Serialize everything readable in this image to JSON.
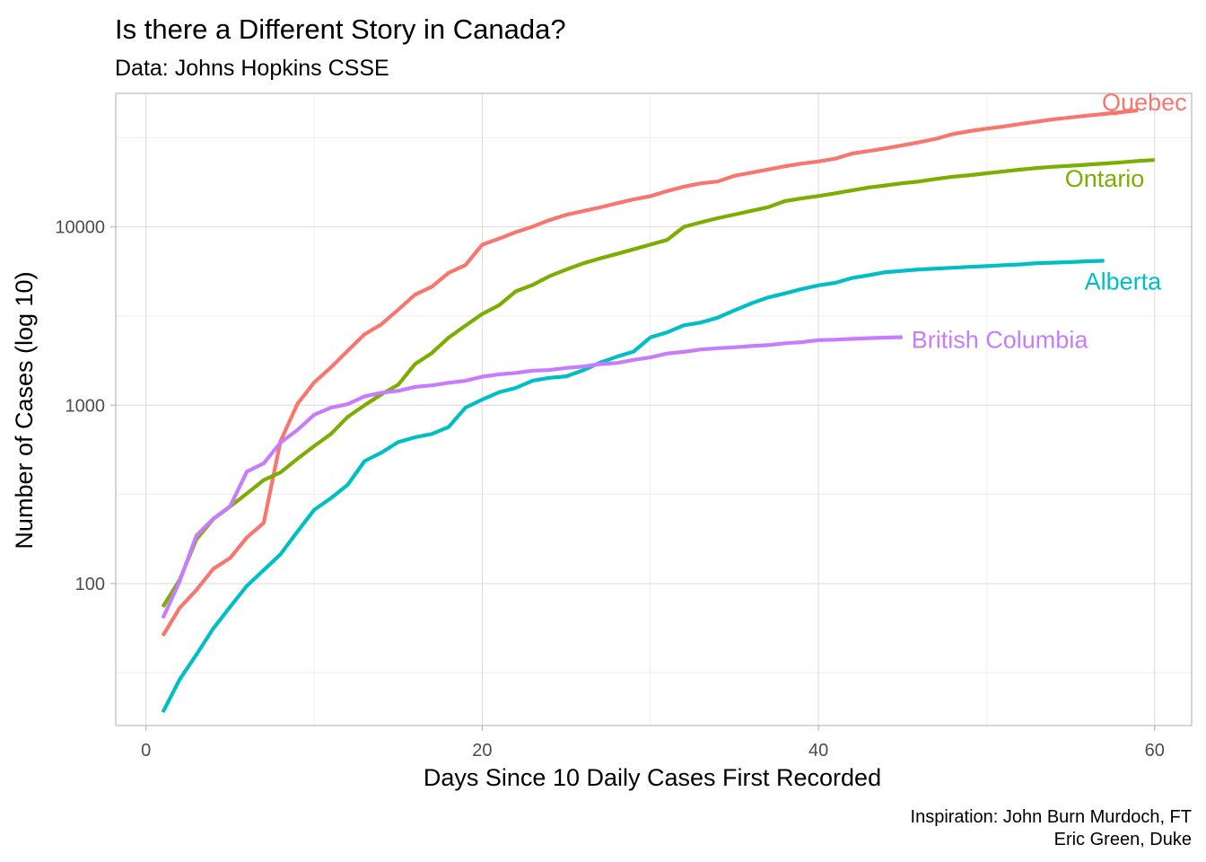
{
  "chart_data": {
    "type": "line",
    "title": "Is there a Different Story in Canada?",
    "subtitle": "Data: Johns Hopkins CSSE",
    "xlabel": "Days Since 10 Daily Cases First Recorded",
    "ylabel": "Number of Cases (log 10)",
    "caption": [
      "Inspiration: John Burn Murdoch, FT",
      "Eric Green, Duke"
    ],
    "y_scale": "log10",
    "xlim": [
      -1.8,
      62.2
    ],
    "ylim": [
      16,
      56000
    ],
    "x_ticks": [
      0,
      20,
      40,
      60
    ],
    "y_ticks": [
      100,
      1000,
      10000
    ],
    "grid": true,
    "legend": "none (direct labels at line ends)",
    "series": [
      {
        "name": "Quebec",
        "color": "#F8766D",
        "x": [
          1,
          2,
          3,
          4,
          5,
          6,
          7,
          8,
          9,
          10,
          11,
          12,
          13,
          14,
          15,
          16,
          17,
          18,
          19,
          20,
          21,
          22,
          23,
          24,
          25,
          26,
          27,
          28,
          29,
          30,
          31,
          32,
          33,
          34,
          35,
          36,
          37,
          38,
          39,
          40,
          41,
          42,
          43,
          44,
          45,
          46,
          47,
          48,
          49,
          50,
          51,
          52,
          53,
          54,
          55,
          56,
          57,
          58,
          59
        ],
        "values": [
          51,
          73,
          92,
          121,
          139,
          181,
          219,
          628,
          1013,
          1342,
          1629,
          2021,
          2498,
          2840,
          3430,
          4162,
          4611,
          5518,
          6101,
          7944,
          8580,
          9340,
          10031,
          10912,
          11677,
          12248,
          12846,
          13557,
          14248,
          14860,
          15857,
          16798,
          17521,
          17950,
          19319,
          20126,
          20965,
          21838,
          22616,
          23267,
          24109,
          25757,
          26594,
          27538,
          28648,
          29793,
          31203,
          33111,
          34396,
          35494,
          36528,
          37700,
          38910,
          40103,
          41040,
          42000,
          42920,
          43900,
          45000
        ]
      },
      {
        "name": "Ontario",
        "color": "#7CAE00",
        "x": [
          1,
          2,
          3,
          4,
          5,
          6,
          7,
          8,
          9,
          10,
          11,
          12,
          13,
          14,
          15,
          16,
          17,
          18,
          19,
          20,
          21,
          22,
          23,
          24,
          25,
          26,
          27,
          28,
          29,
          30,
          31,
          32,
          33,
          34,
          35,
          36,
          37,
          38,
          39,
          40,
          41,
          42,
          43,
          44,
          45,
          46,
          47,
          48,
          49,
          50,
          51,
          52,
          53,
          54,
          55,
          56,
          57,
          58,
          59,
          60
        ],
        "values": [
          74,
          105,
          177,
          230,
          270,
          320,
          380,
          420,
          500,
          590,
          690,
          860,
          1000,
          1150,
          1300,
          1700,
          1960,
          2390,
          2790,
          3250,
          3630,
          4350,
          4720,
          5290,
          5760,
          6240,
          6650,
          7050,
          7480,
          7950,
          8450,
          10000,
          10600,
          11180,
          11710,
          12300,
          12880,
          13940,
          14450,
          14880,
          15420,
          16020,
          16610,
          17070,
          17550,
          17970,
          18550,
          19110,
          19490,
          19950,
          20450,
          20920,
          21360,
          21720,
          22000,
          22320,
          22650,
          23000,
          23400,
          23700
        ]
      },
      {
        "name": "Alberta",
        "color": "#00BFC4",
        "x": [
          1,
          2,
          3,
          4,
          5,
          6,
          7,
          8,
          9,
          10,
          11,
          12,
          13,
          14,
          15,
          16,
          17,
          18,
          19,
          20,
          21,
          22,
          23,
          24,
          25,
          26,
          27,
          28,
          29,
          30,
          31,
          32,
          33,
          34,
          35,
          36,
          37,
          38,
          39,
          40,
          41,
          42,
          43,
          44,
          45,
          46,
          47,
          48,
          49,
          50,
          51,
          52,
          53,
          54,
          55,
          56,
          57
        ],
        "values": [
          19,
          29,
          40,
          56,
          74,
          97,
          119,
          146,
          195,
          259,
          301,
          358,
          486,
          542,
          621,
          661,
          690,
          754,
          969,
          1075,
          1181,
          1250,
          1373,
          1423,
          1451,
          1569,
          1732,
          1870,
          1996,
          2397,
          2562,
          2803,
          2908,
          3095,
          3401,
          3720,
          4017,
          4233,
          4480,
          4696,
          4850,
          5165,
          5355,
          5573,
          5670,
          5766,
          5836,
          5893,
          5963,
          6017,
          6098,
          6157,
          6253,
          6300,
          6345,
          6407,
          6457
        ]
      },
      {
        "name": "British Columbia",
        "color": "#C77CFF",
        "x": [
          1,
          2,
          3,
          4,
          5,
          6,
          7,
          8,
          9,
          10,
          11,
          12,
          13,
          14,
          15,
          16,
          17,
          18,
          19,
          20,
          21,
          22,
          23,
          24,
          25,
          26,
          27,
          28,
          29,
          30,
          31,
          32,
          33,
          34,
          35,
          36,
          37,
          38,
          39,
          40,
          41,
          42,
          43,
          44,
          45
        ],
        "values": [
          64,
          103,
          186,
          231,
          271,
          424,
          472,
          617,
          725,
          884,
          970,
          1013,
          1121,
          1174,
          1203,
          1266,
          1291,
          1336,
          1370,
          1445,
          1490,
          1517,
          1561,
          1575,
          1618,
          1647,
          1699,
          1723,
          1795,
          1853,
          1948,
          1989,
          2053,
          2087,
          2112,
          2145,
          2171,
          2224,
          2255,
          2316,
          2330,
          2353,
          2376,
          2392,
          2407
        ]
      }
    ]
  }
}
